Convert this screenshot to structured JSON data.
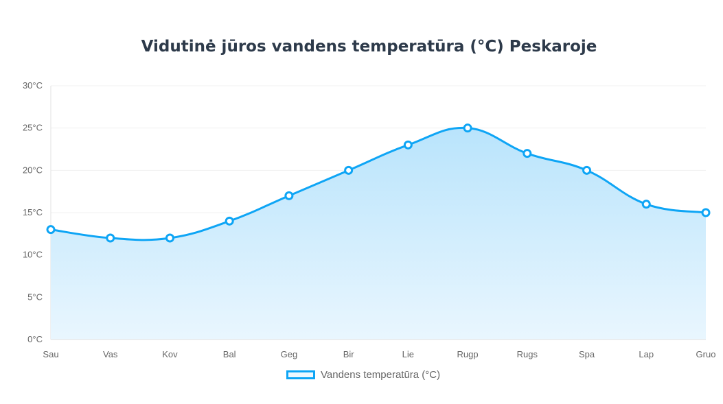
{
  "chart_data": {
    "type": "line",
    "title": "Vidutinė jūros vandens temperatūra (°C) Peskaroje",
    "categories": [
      "Sau",
      "Vas",
      "Kov",
      "Bal",
      "Geg",
      "Bir",
      "Lie",
      "Rugp",
      "Rugs",
      "Spa",
      "Lap",
      "Gruo"
    ],
    "series": [
      {
        "name": "Vandens temperatūra (°C)",
        "values": [
          13,
          12,
          12,
          14,
          17,
          20,
          23,
          25,
          22,
          20,
          16,
          15
        ]
      }
    ],
    "ylim": [
      0,
      30
    ],
    "yticks": [
      "0°C",
      "5°C",
      "10°C",
      "15°C",
      "20°C",
      "25°C",
      "30°C"
    ],
    "ytick_values": [
      0,
      5,
      10,
      15,
      20,
      25,
      30
    ],
    "grid": true,
    "legend": "bottom",
    "line_color": "#0ea5f5",
    "fill": true
  }
}
